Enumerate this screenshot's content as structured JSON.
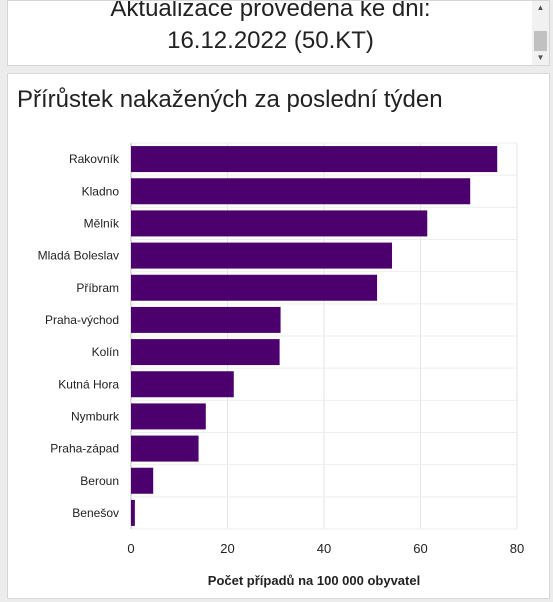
{
  "header": {
    "line1": "Aktualizace provedena ke dni:",
    "line2": "16.12.2022 (50.KT)"
  },
  "chart_data": {
    "type": "bar",
    "orientation": "horizontal",
    "title": "Přírůstek nakažených za poslední týden",
    "xlabel": "Počet případů na 100 000 obyvatel",
    "ylabel": "",
    "categories": [
      "Rakovník",
      "Kladno",
      "Mělník",
      "Mladá Boleslav",
      "Příbram",
      "Praha-východ",
      "Kolín",
      "Kutná Hora",
      "Nymburk",
      "Praha-západ",
      "Beroun",
      "Benešov"
    ],
    "values": [
      75.9,
      70.3,
      61.4,
      54.1,
      51.0,
      31.0,
      30.8,
      21.3,
      15.5,
      14.0,
      4.6,
      0.8
    ],
    "xlim": [
      0,
      80
    ],
    "xticks": [
      0,
      20,
      40,
      60,
      80
    ],
    "grid": true,
    "bar_color": "#4b006e"
  }
}
